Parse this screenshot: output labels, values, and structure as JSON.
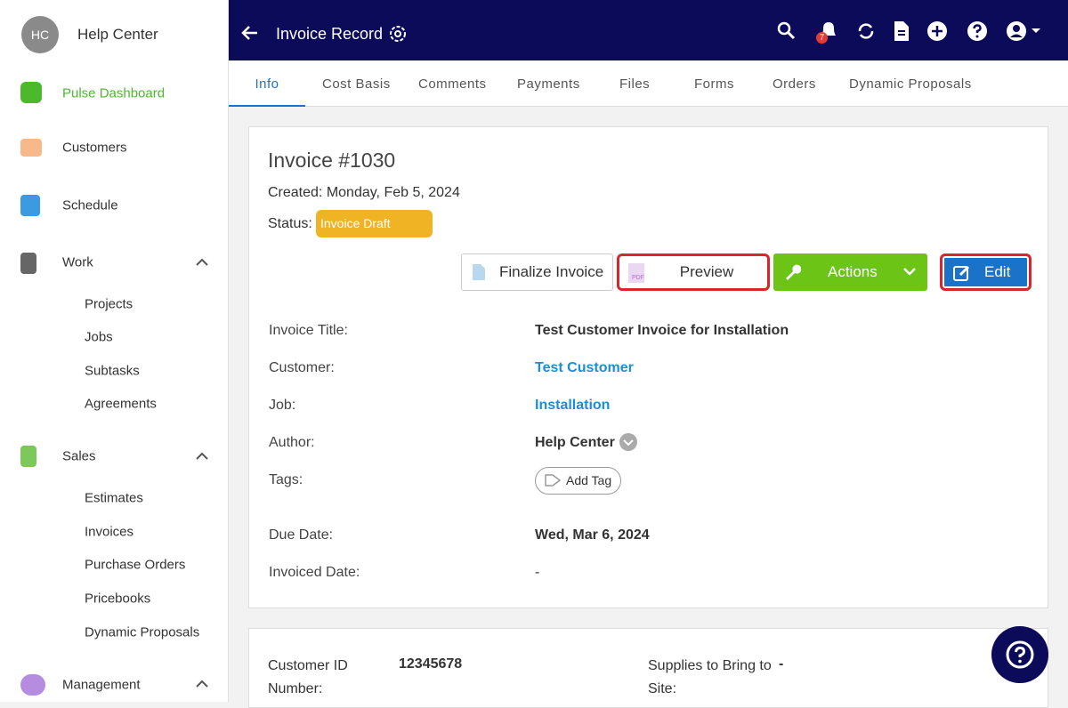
{
  "sidebar": {
    "avatar": "HC",
    "user": "Help Center",
    "nav": [
      {
        "label": "Pulse Dashboard"
      },
      {
        "label": "Customers"
      },
      {
        "label": "Schedule"
      },
      {
        "label": "Work",
        "children": [
          "Projects",
          "Jobs",
          "Subtasks",
          "Agreements"
        ]
      },
      {
        "label": "Sales",
        "children": [
          "Estimates",
          "Invoices",
          "Purchase Orders",
          "Pricebooks",
          "Dynamic Proposals"
        ]
      },
      {
        "label": "Management"
      }
    ]
  },
  "header": {
    "title": "Invoice Record",
    "notification_count": "7"
  },
  "tabs": [
    "Info",
    "Cost Basis",
    "Comments",
    "Payments",
    "Files",
    "Forms",
    "Orders",
    "Dynamic Proposals"
  ],
  "invoice": {
    "heading": "Invoice #1030",
    "created": "Created: Monday, Feb 5, 2024",
    "status_label": "Status:",
    "status": "Invoice Draft",
    "buttons": {
      "finalize": "Finalize Invoice",
      "preview": "Preview",
      "pdf_icon": "PDF",
      "actions": "Actions",
      "edit": "Edit"
    },
    "fields": [
      {
        "label": "Invoice Title:",
        "value": "Test Customer Invoice for Installation"
      },
      {
        "label": "Customer:",
        "value": "Test Customer"
      },
      {
        "label": "Job:",
        "value": "Installation"
      },
      {
        "label": "Author:",
        "value": "Help Center"
      },
      {
        "label": "Tags:",
        "value": "Add Tag"
      },
      {
        "label": "Due Date:",
        "value": "Wed, Mar 6, 2024"
      },
      {
        "label": "Invoiced Date:",
        "value": "-"
      }
    ]
  },
  "details": [
    {
      "label": "Customer ID Number:",
      "value": "12345678"
    },
    {
      "label": "Supplies to Bring to Site:",
      "value": "-"
    }
  ]
}
